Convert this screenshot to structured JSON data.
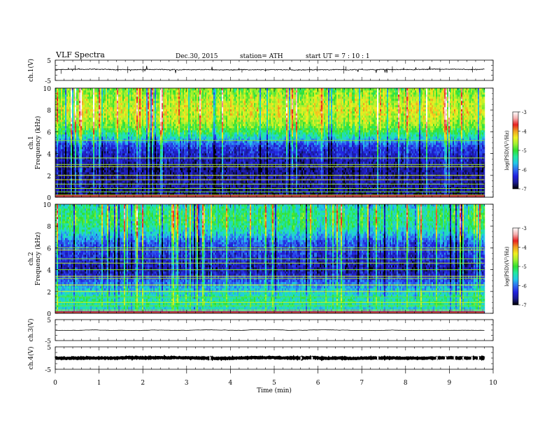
{
  "header": {
    "title": "VLF  Spectra",
    "date": "Dec.30, 2015",
    "station": "station= ATH",
    "start": "start  UT  =   7  : 10 : 1"
  },
  "colors": {
    "colormap": [
      "#000000",
      "#1a1a90",
      "#2222e0",
      "#2f6cf0",
      "#22c8e8",
      "#22e8a0",
      "#30e030",
      "#a0f030",
      "#f0f020",
      "#f0a020",
      "#e82020",
      "#f5b0b0",
      "#ffffff"
    ]
  },
  "chart_data": [
    {
      "type": "line",
      "name": "ch1-waveform",
      "ylabel": "ch.1(V)",
      "yticks": [
        "5",
        "-5"
      ],
      "ylim": [
        -5,
        5
      ],
      "xlim": [
        0,
        10
      ],
      "baseline": 0.3,
      "noise": 0.35,
      "spikes": 0.9,
      "data_end": 9.8
    },
    {
      "type": "heatmap",
      "name": "ch1-spectrogram",
      "ylabel": "Frequency  (kHz)",
      "channel_label": "ch.1",
      "ylim": [
        0,
        10
      ],
      "yticks": [
        "0",
        "2",
        "4",
        "6",
        "8",
        "10"
      ],
      "xlim": [
        0,
        10
      ],
      "data_end": 9.8,
      "colorbar": {
        "label": "log(PSD)(V²/Hz)",
        "ticks": [
          "-3",
          "-4",
          "-5",
          "-6",
          "-7"
        ],
        "range": [
          -7,
          -3
        ]
      },
      "profile": [
        -6.9,
        -6.7,
        -6.6,
        -6.6,
        -6.6,
        -6.7,
        -6.6,
        -6.5,
        -6.4,
        -6.3,
        -6.0,
        -5.5,
        -5.1,
        -4.8,
        -4.6,
        -4.5,
        -4.4,
        -4.5,
        -4.6,
        -4.7,
        -4.8
      ],
      "lines_khz": [
        0.2,
        0.5,
        0.8,
        1.2,
        1.6,
        2.0,
        2.8,
        3.0,
        3.6,
        5.2
      ]
    },
    {
      "type": "heatmap",
      "name": "ch2-spectrogram",
      "ylabel": "Frequency  (kHz)",
      "channel_label": "ch.2",
      "ylim": [
        0,
        10
      ],
      "yticks": [
        "0",
        "2",
        "4",
        "6",
        "8",
        "10"
      ],
      "xlim": [
        0,
        10
      ],
      "data_end": 9.8,
      "colorbar": {
        "label": "log(PSD)(V²/Hz)",
        "ticks": [
          "-3",
          "-4",
          "-5",
          "-6",
          "-7"
        ],
        "range": [
          -7,
          -3
        ]
      },
      "profile": [
        -6.2,
        -5.5,
        -5.3,
        -5.4,
        -5.6,
        -5.8,
        -6.1,
        -6.4,
        -6.6,
        -6.5,
        -6.4,
        -6.3,
        -6.2,
        -6.1,
        -5.8,
        -5.5,
        -5.3,
        -5.2,
        -5.2,
        -5.3,
        -5.5
      ],
      "lines_khz": [
        0.3,
        0.7,
        1.0,
        1.5,
        2.0,
        2.6,
        3.2,
        3.4,
        4.0,
        4.6,
        5.0,
        5.8,
        6.0
      ]
    },
    {
      "type": "line",
      "name": "ch3-waveform",
      "ylabel": "ch.3(V)",
      "yticks": [
        "5",
        "-5"
      ],
      "ylim": [
        -5,
        5
      ],
      "xlim": [
        0,
        10
      ],
      "baseline": 0.0,
      "noise": 0.02,
      "spikes": 0.0,
      "data_end": 9.8
    },
    {
      "type": "line",
      "name": "ch4-waveform",
      "ylabel": "ch.4(V)",
      "yticks": [
        "5",
        "-5"
      ],
      "ylim": [
        -5,
        5
      ],
      "xlim": [
        0,
        10
      ],
      "baseline": 0.0,
      "noise": 0.35,
      "spikes": 0.0,
      "data_end": 9.8
    }
  ],
  "xaxis": {
    "label": "Time  (min)",
    "ticks": [
      "0",
      "1",
      "2",
      "3",
      "4",
      "5",
      "6",
      "7",
      "8",
      "9",
      "10"
    ],
    "range": [
      0,
      10
    ]
  }
}
